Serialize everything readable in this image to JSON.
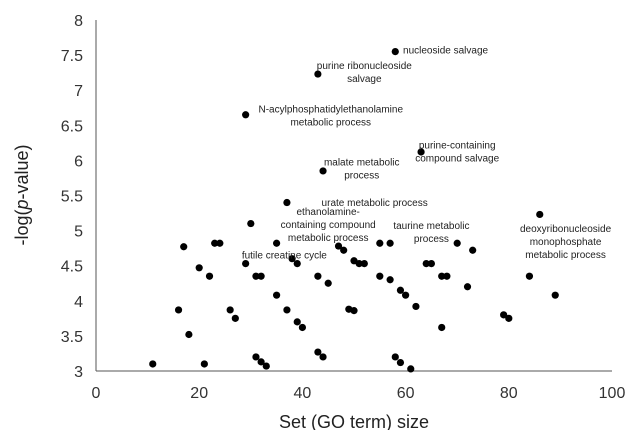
{
  "chart_data": {
    "type": "scatter",
    "xlabel": "Set (GO term) size",
    "ylabel_parts": [
      "-log(",
      "p",
      "-value)"
    ],
    "xlim": [
      0,
      100
    ],
    "ylim": [
      3,
      8
    ],
    "x_ticks": [
      0,
      20,
      40,
      60,
      80,
      100
    ],
    "y_ticks": [
      3,
      3.5,
      4,
      4.5,
      5,
      5.5,
      6,
      6.5,
      7,
      7.5,
      8
    ],
    "grid": false,
    "legend": "none",
    "marker_color": "#000000",
    "points": [
      {
        "x": 11,
        "y": 3.1
      },
      {
        "x": 16,
        "y": 3.87
      },
      {
        "x": 17,
        "y": 4.77
      },
      {
        "x": 18,
        "y": 3.52
      },
      {
        "x": 20,
        "y": 4.47
      },
      {
        "x": 21,
        "y": 3.1
      },
      {
        "x": 22,
        "y": 4.35
      },
      {
        "x": 23,
        "y": 4.82
      },
      {
        "x": 24,
        "y": 4.82
      },
      {
        "x": 26,
        "y": 3.87
      },
      {
        "x": 27,
        "y": 3.75
      },
      {
        "x": 29,
        "y": 4.53
      },
      {
        "x": 29,
        "y": 6.65
      },
      {
        "x": 30,
        "y": 5.1
      },
      {
        "x": 31,
        "y": 4.35
      },
      {
        "x": 31,
        "y": 3.2
      },
      {
        "x": 32,
        "y": 4.35
      },
      {
        "x": 32,
        "y": 3.13
      },
      {
        "x": 33,
        "y": 3.07
      },
      {
        "x": 35,
        "y": 4.82
      },
      {
        "x": 35,
        "y": 4.08
      },
      {
        "x": 37,
        "y": 5.4
      },
      {
        "x": 37,
        "y": 3.87
      },
      {
        "x": 38,
        "y": 4.6
      },
      {
        "x": 39,
        "y": 4.53
      },
      {
        "x": 39,
        "y": 3.7
      },
      {
        "x": 40,
        "y": 3.62
      },
      {
        "x": 43,
        "y": 7.23
      },
      {
        "x": 43,
        "y": 4.35
      },
      {
        "x": 43,
        "y": 3.27
      },
      {
        "x": 44,
        "y": 5.85
      },
      {
        "x": 44,
        "y": 3.2
      },
      {
        "x": 45,
        "y": 4.25
      },
      {
        "x": 47,
        "y": 4.78
      },
      {
        "x": 48,
        "y": 4.72
      },
      {
        "x": 49,
        "y": 3.88
      },
      {
        "x": 50,
        "y": 4.57
      },
      {
        "x": 50,
        "y": 3.86
      },
      {
        "x": 51,
        "y": 4.53
      },
      {
        "x": 52,
        "y": 4.53
      },
      {
        "x": 55,
        "y": 4.82
      },
      {
        "x": 55,
        "y": 4.35
      },
      {
        "x": 57,
        "y": 4.82
      },
      {
        "x": 57,
        "y": 4.3
      },
      {
        "x": 58,
        "y": 7.55
      },
      {
        "x": 58,
        "y": 3.2
      },
      {
        "x": 59,
        "y": 4.15
      },
      {
        "x": 59,
        "y": 3.12
      },
      {
        "x": 60,
        "y": 4.08
      },
      {
        "x": 61,
        "y": 3.03
      },
      {
        "x": 62,
        "y": 3.92
      },
      {
        "x": 63,
        "y": 6.12
      },
      {
        "x": 64,
        "y": 4.53
      },
      {
        "x": 65,
        "y": 4.53
      },
      {
        "x": 67,
        "y": 4.35
      },
      {
        "x": 67,
        "y": 3.62
      },
      {
        "x": 68,
        "y": 4.35
      },
      {
        "x": 70,
        "y": 4.82
      },
      {
        "x": 72,
        "y": 4.2
      },
      {
        "x": 73,
        "y": 4.72
      },
      {
        "x": 79,
        "y": 3.8
      },
      {
        "x": 80,
        "y": 3.75
      },
      {
        "x": 84,
        "y": 4.35
      },
      {
        "x": 86,
        "y": 5.23
      },
      {
        "x": 89,
        "y": 4.08
      }
    ],
    "annotations": [
      {
        "x": 59.5,
        "y": 7.52,
        "anchor": "start",
        "lines": [
          "nucleoside salvage"
        ]
      },
      {
        "x": 52,
        "y": 7.3,
        "anchor": "middle",
        "lines": [
          "purine ribonucleoside",
          "salvage"
        ]
      },
      {
        "x": 45.5,
        "y": 6.68,
        "anchor": "middle",
        "lines": [
          "N-acylphosphatidylethanolamine",
          "metabolic process"
        ]
      },
      {
        "x": 70,
        "y": 6.17,
        "anchor": "middle",
        "lines": [
          "purine-containing",
          "compound salvage"
        ]
      },
      {
        "x": 51.5,
        "y": 5.93,
        "anchor": "middle",
        "lines": [
          "malate metabolic",
          "process"
        ]
      },
      {
        "x": 54,
        "y": 5.35,
        "anchor": "middle",
        "lines": [
          "urate metabolic process"
        ]
      },
      {
        "x": 45,
        "y": 5.22,
        "anchor": "middle",
        "lines": [
          "ethanolamine-",
          "containing compound",
          "metabolic process"
        ]
      },
      {
        "x": 65,
        "y": 5.02,
        "anchor": "middle",
        "lines": [
          "taurine metabolic",
          "process"
        ]
      },
      {
        "x": 91,
        "y": 4.98,
        "anchor": "middle",
        "lines": [
          "deoxyribonucleoside",
          "monophosphate",
          "metabolic process"
        ]
      },
      {
        "x": 36.5,
        "y": 4.6,
        "anchor": "middle",
        "lines": [
          "futile creatine cycle"
        ]
      }
    ]
  }
}
